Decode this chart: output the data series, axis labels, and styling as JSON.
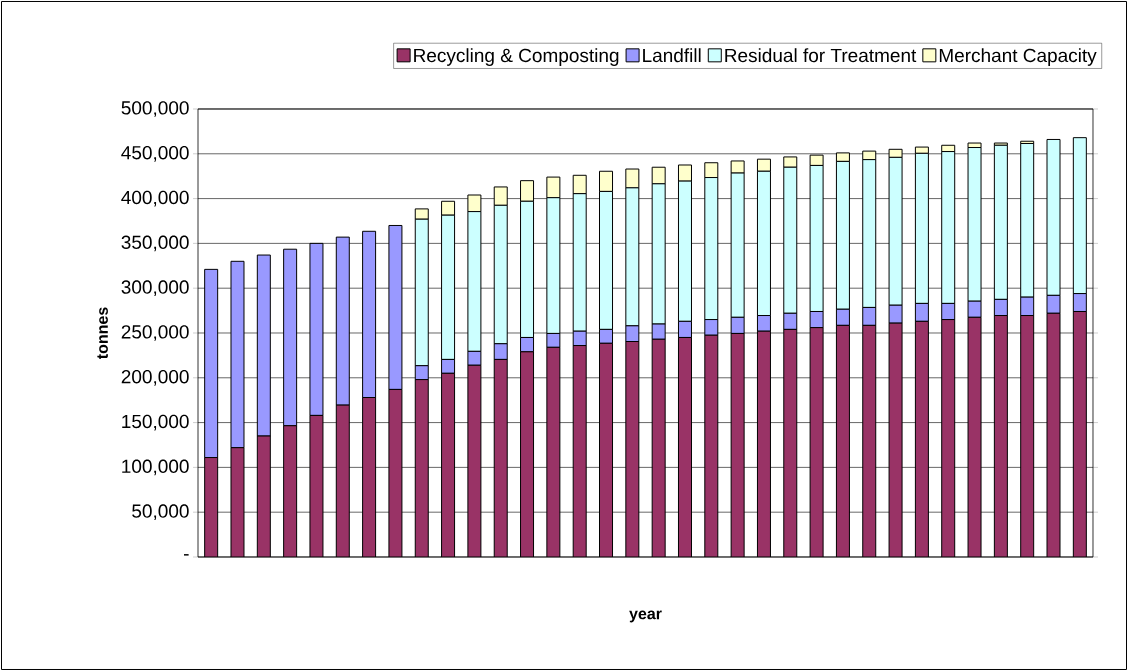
{
  "chart_data": {
    "type": "bar",
    "stacked": true,
    "xlabel": "year",
    "ylabel": "tonnes",
    "categories": [
      null,
      null,
      null,
      null,
      null,
      null,
      null,
      null,
      null,
      null,
      null,
      null,
      null,
      null,
      null,
      null,
      null,
      null,
      null,
      null,
      null,
      null,
      null,
      null,
      null,
      null,
      null,
      null,
      null,
      null,
      null,
      null,
      null,
      null
    ],
    "series": [
      {
        "name": "Recycling & Composting",
        "color": "#993366",
        "values": [
          111000,
          122000,
          135000,
          146500,
          158000,
          169500,
          178000,
          187000,
          198000,
          205000,
          214000,
          220500,
          229000,
          234000,
          236000,
          238500,
          240500,
          243000,
          245000,
          247500,
          249500,
          252000,
          254000,
          256000,
          258500,
          258500,
          261000,
          263000,
          265000,
          267500,
          269500,
          269500,
          272000,
          274000
        ]
      },
      {
        "name": "Landfill",
        "color": "#9999ff",
        "values": [
          210000,
          208000,
          202000,
          197000,
          192000,
          187500,
          185500,
          183000,
          15500,
          15500,
          15500,
          17500,
          16000,
          15500,
          16000,
          15500,
          17500,
          17000,
          18000,
          17500,
          18000,
          17500,
          18000,
          18000,
          18000,
          20000,
          20000,
          20000,
          18000,
          18000,
          18000,
          20500,
          20000,
          20000
        ]
      },
      {
        "name": "Residual for Treatment",
        "color": "#ccffff",
        "values": [
          null,
          null,
          null,
          null,
          null,
          null,
          null,
          null,
          163500,
          161000,
          156000,
          154500,
          152000,
          151500,
          153500,
          154000,
          154000,
          156500,
          156500,
          158500,
          161000,
          161000,
          163000,
          163000,
          165000,
          165000,
          165000,
          167500,
          169500,
          171500,
          172000,
          171500,
          174000,
          174000
        ]
      },
      {
        "name": "Merchant Capacity",
        "color": "#ffffcc",
        "values": [
          null,
          null,
          null,
          null,
          null,
          null,
          null,
          null,
          11500,
          15500,
          18500,
          20500,
          23000,
          23000,
          20500,
          22500,
          21000,
          18500,
          18000,
          16500,
          13500,
          13500,
          11500,
          11500,
          9500,
          9500,
          9000,
          7000,
          7000,
          5000,
          2500,
          2500,
          null,
          null
        ]
      }
    ],
    "ylim": [
      0,
      500000
    ],
    "yticks": [
      {
        "value": 0,
        "label": "-"
      },
      {
        "value": 50000,
        "label": "50,000"
      },
      {
        "value": 100000,
        "label": "100,000"
      },
      {
        "value": 150000,
        "label": "150,000"
      },
      {
        "value": 200000,
        "label": "200,000"
      },
      {
        "value": 250000,
        "label": "250,000"
      },
      {
        "value": 300000,
        "label": "300,000"
      },
      {
        "value": 350000,
        "label": "350,000"
      },
      {
        "value": 400000,
        "label": "400,000"
      },
      {
        "value": 450000,
        "label": "450,000"
      },
      {
        "value": 500000,
        "label": "500,000"
      }
    ],
    "grid": "y",
    "legend": "top"
  }
}
